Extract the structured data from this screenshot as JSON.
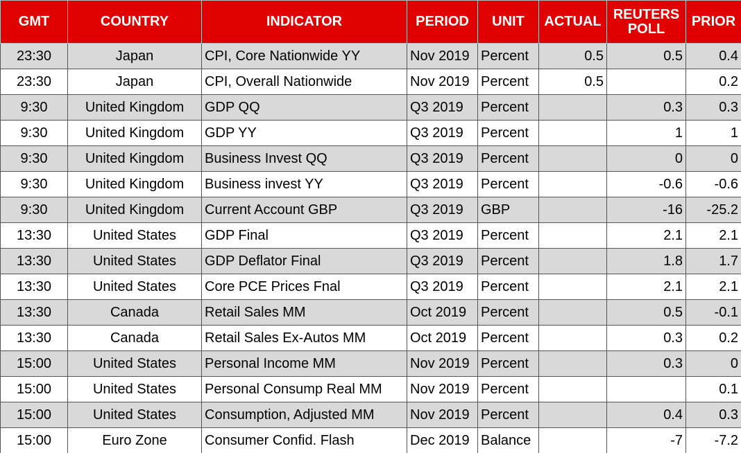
{
  "table": {
    "headers": [
      "GMT",
      "COUNTRY",
      "INDICATOR",
      "PERIOD",
      "UNIT",
      "ACTUAL",
      "REUTERS POLL",
      "PRIOR"
    ],
    "rows": [
      [
        "23:30",
        "Japan",
        "CPI, Core Nationwide YY",
        "Nov 2019",
        "Percent",
        "0.5",
        "0.5",
        "0.4"
      ],
      [
        "23:30",
        "Japan",
        "CPI, Overall Nationwide",
        "Nov 2019",
        "Percent",
        "0.5",
        null,
        "0.2"
      ],
      [
        "9:30",
        "United Kingdom",
        "GDP QQ",
        "Q3 2019",
        "Percent",
        null,
        "0.3",
        "0.3"
      ],
      [
        "9:30",
        "United Kingdom",
        "GDP YY",
        "Q3 2019",
        "Percent",
        null,
        "1",
        "1"
      ],
      [
        "9:30",
        "United Kingdom",
        "Business Invest QQ",
        "Q3 2019",
        "Percent",
        null,
        "0",
        "0"
      ],
      [
        "9:30",
        "United Kingdom",
        "Business invest YY",
        "Q3 2019",
        "Percent",
        null,
        "-0.6",
        "-0.6"
      ],
      [
        "9:30",
        "United Kingdom",
        "Current Account GBP",
        "Q3 2019",
        "GBP",
        null,
        "-16",
        "-25.2"
      ],
      [
        "13:30",
        "United States",
        "GDP Final",
        "Q3 2019",
        "Percent",
        null,
        "2.1",
        "2.1"
      ],
      [
        "13:30",
        "United States",
        "GDP Deflator Final",
        "Q3 2019",
        "Percent",
        null,
        "1.8",
        "1.7"
      ],
      [
        "13:30",
        "United States",
        "Core PCE Prices Fnal",
        "Q3 2019",
        "Percent",
        null,
        "2.1",
        "2.1"
      ],
      [
        "13:30",
        "Canada",
        "Retail Sales MM",
        "Oct 2019",
        "Percent",
        null,
        "0.5",
        "-0.1"
      ],
      [
        "13:30",
        "Canada",
        "Retail Sales Ex-Autos MM",
        "Oct 2019",
        "Percent",
        null,
        "0.3",
        "0.2"
      ],
      [
        "15:00",
        "United States",
        "Personal Income MM",
        "Nov 2019",
        "Percent",
        null,
        "0.3",
        "0"
      ],
      [
        "15:00",
        "United States",
        "Personal Consump Real MM",
        "Nov 2019",
        "Percent",
        null,
        null,
        "0.1"
      ],
      [
        "15:00",
        "United States",
        "Consumption, Adjusted MM",
        "Nov 2019",
        "Percent",
        null,
        "0.4",
        "0.3"
      ],
      [
        "15:00",
        "Euro Zone",
        "Consumer Confid. Flash",
        "Dec 2019",
        "Balance",
        null,
        "-7",
        "-7.2"
      ]
    ]
  }
}
